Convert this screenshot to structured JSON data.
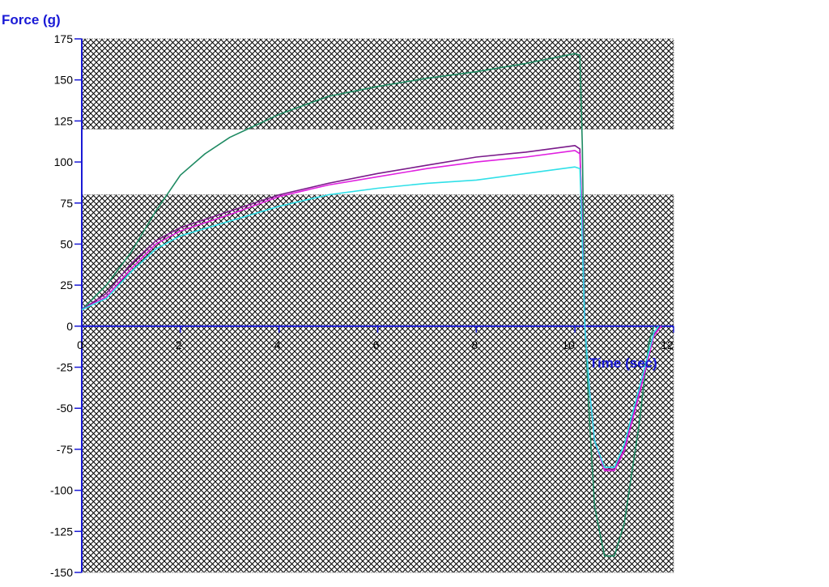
{
  "chart_data": {
    "type": "line",
    "title": "",
    "ylabel": "Force (g)",
    "xlabel": "Time (sec)",
    "xlim": [
      0,
      12
    ],
    "ylim": [
      -150,
      175
    ],
    "x_ticks": [
      0,
      2,
      4,
      6,
      8,
      10,
      12
    ],
    "y_ticks": [
      175,
      150,
      125,
      100,
      75,
      50,
      25,
      0,
      -25,
      -50,
      -75,
      -100,
      -125,
      -150
    ],
    "grid": false,
    "axis_color": "#1a1ad6",
    "shaded_bands": [
      {
        "from": 120,
        "to": 175,
        "pattern": "crosshatch"
      },
      {
        "from": -150,
        "to": 80,
        "pattern": "crosshatch"
      }
    ],
    "series": [
      {
        "color": "#1e8a62",
        "x": [
          0,
          0.5,
          1,
          1.5,
          2,
          2.5,
          3,
          3.5,
          4,
          5,
          6,
          7,
          8,
          9,
          10,
          10.1,
          10.15,
          10.2,
          10.3,
          10.4,
          10.6,
          10.8,
          11,
          11.3,
          11.5,
          11.6
        ],
        "y": [
          10,
          25,
          45,
          70,
          92,
          105,
          115,
          122,
          129,
          140,
          146,
          151,
          155,
          160,
          166,
          165,
          110,
          0,
          -60,
          -110,
          -140,
          -140,
          -120,
          -60,
          -10,
          0
        ]
      },
      {
        "color": "#7a1a8a",
        "x": [
          0,
          0.5,
          1,
          1.5,
          2,
          3,
          4,
          5,
          6,
          7,
          8,
          9,
          10,
          10.1,
          10.15,
          10.2,
          10.3,
          10.4,
          10.6,
          10.8,
          11,
          11.3,
          11.6,
          11.75
        ],
        "y": [
          10,
          20,
          38,
          52,
          60,
          70,
          80,
          87,
          93,
          98,
          103,
          106,
          110,
          108,
          60,
          0,
          -40,
          -70,
          -87,
          -87,
          -75,
          -40,
          -5,
          0
        ]
      },
      {
        "color": "#e020e0",
        "x": [
          0,
          0.5,
          1,
          1.5,
          2,
          3,
          4,
          5,
          6,
          7,
          8,
          9,
          10,
          10.1,
          10.15,
          10.2,
          10.3,
          10.4,
          10.6,
          10.8,
          11,
          11.3,
          11.6,
          11.75
        ],
        "y": [
          10,
          18,
          35,
          50,
          58,
          68,
          79,
          86,
          91,
          96,
          100,
          103,
          107,
          105,
          60,
          0,
          -40,
          -70,
          -88,
          -88,
          -76,
          -42,
          -6,
          0
        ]
      },
      {
        "color": "#30e0e8",
        "x": [
          0,
          0.5,
          1,
          1.5,
          2,
          3,
          4,
          5,
          6,
          7,
          8,
          9,
          10,
          10.1,
          10.15,
          10.2,
          10.3,
          10.4,
          10.6,
          10.8,
          11,
          11.3,
          11.6,
          11.7
        ],
        "y": [
          10,
          17,
          33,
          47,
          55,
          64,
          73,
          80,
          84,
          87,
          89,
          93,
          97,
          96,
          50,
          0,
          -40,
          -70,
          -86,
          -86,
          -72,
          -38,
          -4,
          0
        ]
      }
    ]
  }
}
